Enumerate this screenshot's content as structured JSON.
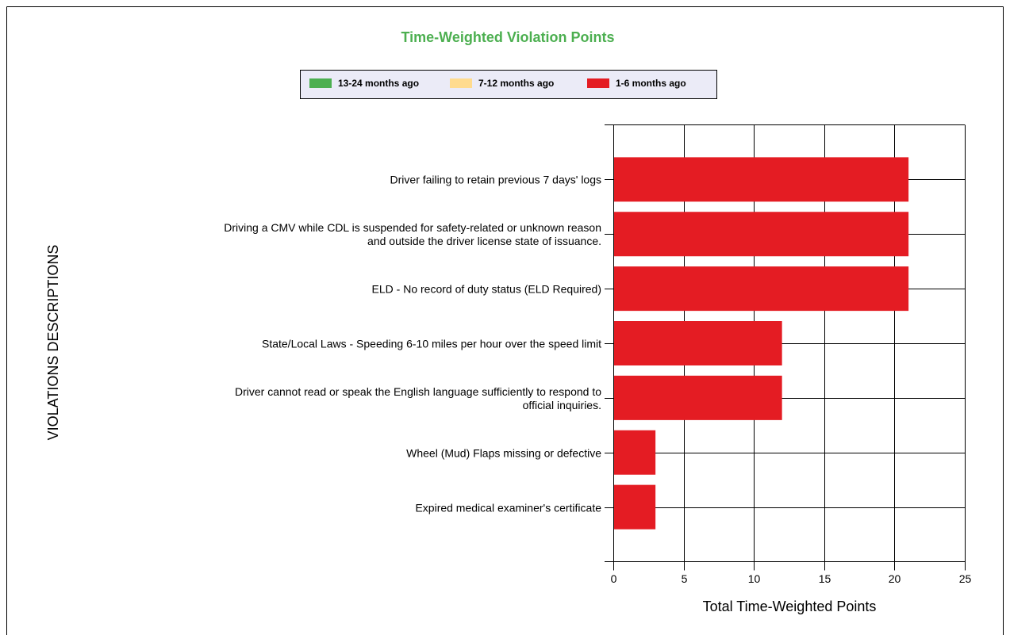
{
  "chart_data": {
    "type": "stacked-bar-horizontal",
    "title": "Time-Weighted Violation Points",
    "x_label": "Total Time-Weighted Points",
    "y_label": "VIOLATIONS DESCRIPTIONS",
    "categories": [
      "Driver failing to retain previous 7 days' logs",
      "Driving a CMV while CDL is suspended for safety-related or unknown reason\nand outside the driver  license state of issuance.",
      "ELD - No record of duty status (ELD Required)",
      "State/Local Laws - Speeding 6-10 miles per hour over the speed limit",
      "Driver cannot read or speak the English language sufficiently to respond to\nofficial inquiries.",
      "Wheel (Mud) Flaps missing or defective",
      "Expired medical examiner's certificate"
    ],
    "series": [
      {
        "name": "13-24 months ago",
        "color": "#4caf50",
        "values": [
          0,
          0,
          0,
          0,
          0,
          0,
          0
        ]
      },
      {
        "name": "7-12 months ago",
        "color": "#ffdb8e",
        "values": [
          0,
          0,
          0,
          0,
          0,
          0,
          0
        ]
      },
      {
        "name": "1-6 months ago",
        "color": "#e41c23",
        "values": [
          21,
          21,
          21,
          12,
          12,
          3,
          3
        ]
      }
    ],
    "xlim": [
      0,
      25
    ],
    "xticks": [
      0,
      5,
      10,
      15,
      20,
      25
    ],
    "grid": true
  }
}
